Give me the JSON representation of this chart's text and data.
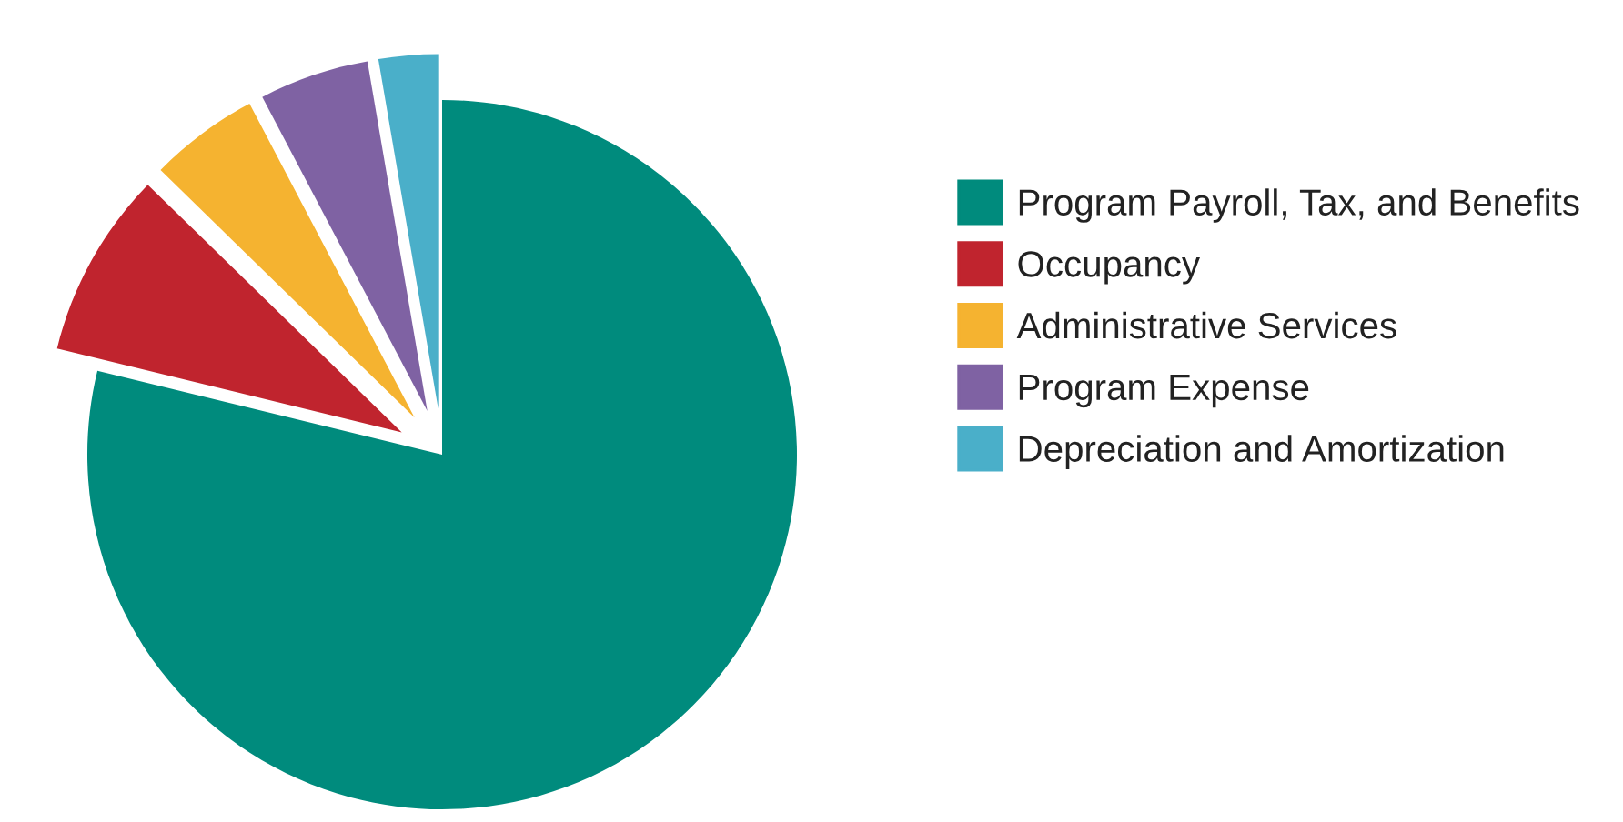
{
  "chart_data": {
    "type": "pie",
    "categories": [
      "Program Payroll, Tax, and Benefits",
      "Occupancy",
      "Administrative Services",
      "Program Expense",
      "Depreciation and Amortization"
    ],
    "values": [
      78.8,
      8.5,
      5.0,
      5.0,
      2.7
    ],
    "colors": [
      "#008b7d",
      "#c0242e",
      "#f5b330",
      "#7f62a3",
      "#4aafc9"
    ],
    "legend": "right"
  }
}
